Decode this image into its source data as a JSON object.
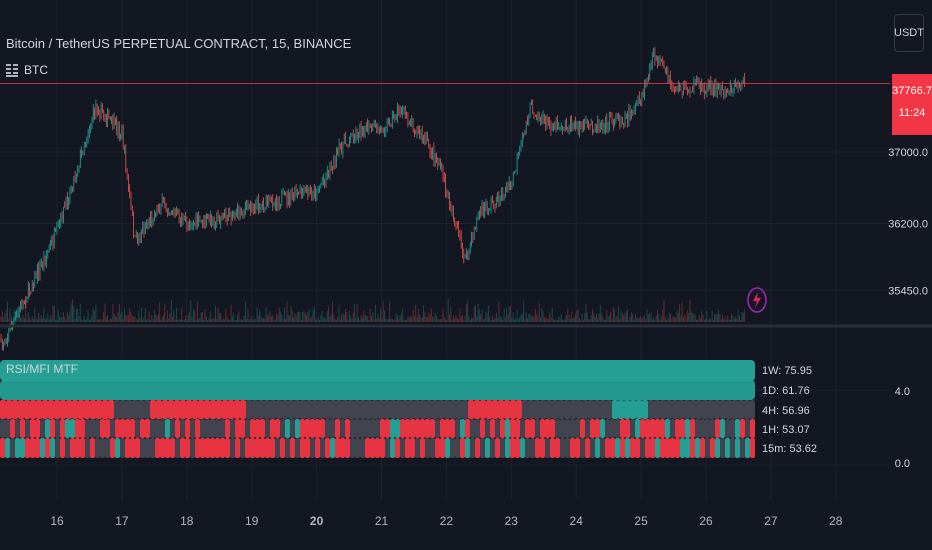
{
  "header": {
    "symbol_title": "Bitcoin / TetherUS PERPETUAL CONTRACT, 15, BINANCE",
    "series_label": "BTC",
    "currency": "USDT"
  },
  "last_price": {
    "price": "37766.7",
    "countdown": "11:24",
    "color": "#f23645"
  },
  "indicator": {
    "title": "RSI/MFI MTF",
    "labels": [
      "1W: 75.95",
      "1D: 61.76",
      "4H: 56.96",
      "1H: 53.07",
      "15m: 53.62"
    ],
    "ytick_labels": [
      "4.0",
      "0.0"
    ]
  },
  "colors": {
    "up": "#26a69a",
    "down": "#ef5350",
    "bull_bar": "#26a69a",
    "bear_bar": "#f23645",
    "neutral_bar": "#434651"
  },
  "chart_data": [
    {
      "type": "line",
      "title": "Bitcoin / TetherUS PERPETUAL CONTRACT, 15, BINANCE",
      "x": [
        "16",
        "16.3",
        "16.6",
        "17",
        "17.2",
        "17.6",
        "18",
        "18.5",
        "19",
        "19.5",
        "20",
        "20.4",
        "20.7",
        "21",
        "21.3",
        "21.7",
        "21.9",
        "22",
        "22.3",
        "22.5",
        "22.8",
        "23",
        "23.3",
        "23.5",
        "24",
        "24.4",
        "24.8",
        "25",
        "25.2",
        "25.5",
        "26",
        "26.3",
        "26.6"
      ],
      "series": [
        {
          "values": [
            36100,
            36800,
            37520,
            37200,
            36000,
            36420,
            36200,
            36250,
            36400,
            36480,
            36560,
            37080,
            37250,
            37260,
            37480,
            37100,
            36850,
            36560,
            35780,
            36320,
            36470,
            36630,
            37520,
            37330,
            37280,
            37320,
            37400,
            37580,
            38100,
            37710,
            37730,
            37700,
            37766.7
          ]
        }
      ],
      "xtick_labels": [
        "16",
        "17",
        "18",
        "19",
        "20",
        "21",
        "22",
        "23",
        "24",
        "25",
        "26",
        "27",
        "28"
      ],
      "ytick_labels": [
        "37000.0",
        "36200.0",
        "35450.0"
      ],
      "last_price": 37766.7,
      "grid": true
    },
    {
      "type": "heatmap",
      "title": "RSI/MFI MTF",
      "categories": [
        "1W",
        "1D",
        "4H",
        "1H",
        "15m"
      ],
      "values": [
        75.95,
        61.76,
        56.96,
        53.07,
        53.62
      ],
      "ytick_labels": [
        "4.0",
        "0.0"
      ]
    }
  ]
}
